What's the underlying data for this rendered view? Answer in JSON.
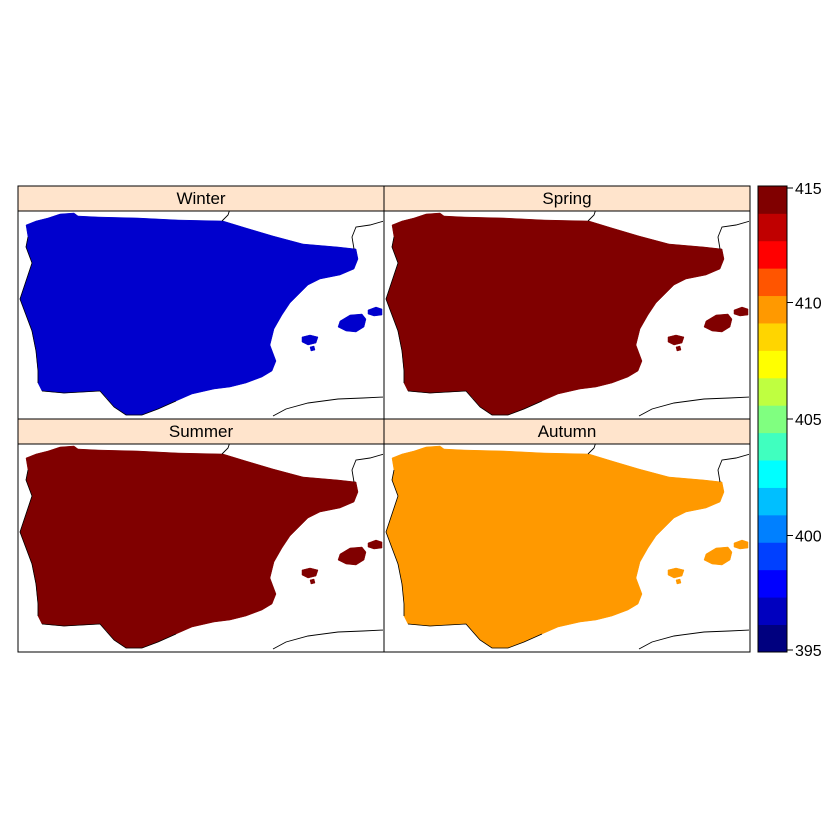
{
  "panels": [
    {
      "id": "winter",
      "title": "Winter",
      "fill": "#0000CD"
    },
    {
      "id": "spring",
      "title": "Spring",
      "fill": "#800000"
    },
    {
      "id": "summer",
      "title": "Summer",
      "fill": "#800000"
    },
    {
      "id": "autumn",
      "title": "Autumn",
      "fill": "#FF9900"
    }
  ],
  "strip_color": "#FFE4CC",
  "colorkey": {
    "range": [
      395,
      415
    ],
    "tick_labels": [
      "395",
      "400",
      "405",
      "410",
      "415"
    ],
    "colors": [
      "#00007F",
      "#0000BF",
      "#0000FF",
      "#0040FF",
      "#0080FF",
      "#00BFFF",
      "#00FFFF",
      "#40FFBF",
      "#80FF80",
      "#BFFF40",
      "#FFFF00",
      "#FFD500",
      "#FF9900",
      "#FF5500",
      "#FF0000",
      "#C00000",
      "#800000"
    ]
  }
}
